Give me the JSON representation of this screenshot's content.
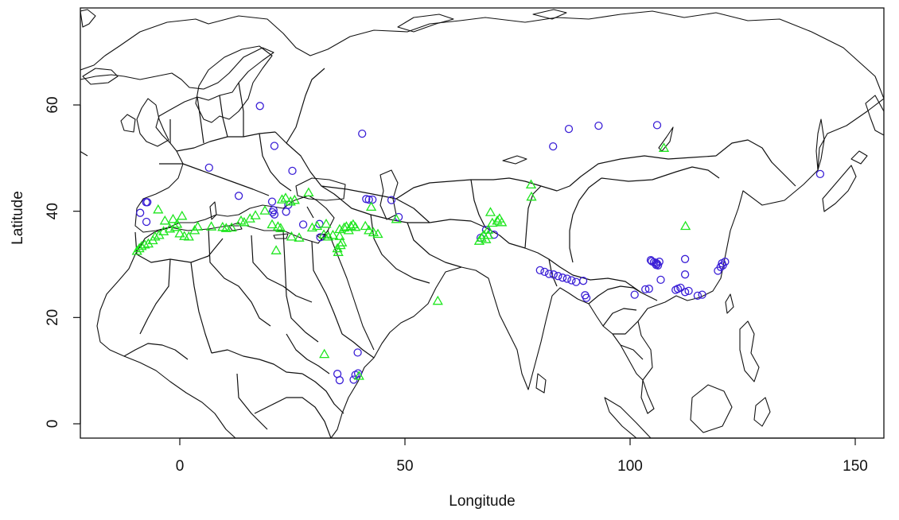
{
  "chart_data": {
    "type": "scatter",
    "title": "",
    "xlabel": "Longitude",
    "ylabel": "Latitude",
    "xlim": [
      -22,
      157
    ],
    "ylim": [
      -3,
      78
    ],
    "x_ticks": [
      0,
      50,
      100,
      150
    ],
    "y_ticks": [
      0,
      20,
      40,
      60
    ],
    "grid": false,
    "legend": "none",
    "basemap": "world political boundaries (Europe, Africa, Asia)",
    "colors": {
      "circles": "#3a1fd6",
      "triangles": "#1ee61e",
      "map_lines": "#111111"
    },
    "series": [
      {
        "marker": "circle",
        "points": [
          [
            17.8,
            59.8
          ],
          [
            21,
            52.3
          ],
          [
            40.5,
            54.6
          ],
          [
            6.5,
            48.2
          ],
          [
            25,
            47.6
          ],
          [
            13.1,
            42.9
          ],
          [
            -7.5,
            41.7
          ],
          [
            -7.2,
            41.7
          ],
          [
            -8.8,
            39.7
          ],
          [
            -7.4,
            38
          ],
          [
            20.5,
            41.8
          ],
          [
            20.8,
            40.2
          ],
          [
            20.6,
            39.8
          ],
          [
            21,
            39.4
          ],
          [
            23.6,
            39.9
          ],
          [
            24.1,
            41.2
          ],
          [
            27.4,
            37.5
          ],
          [
            31,
            37.6
          ],
          [
            31.2,
            35.1
          ],
          [
            41.4,
            42.3
          ],
          [
            42,
            42.2
          ],
          [
            42.8,
            42.2
          ],
          [
            47,
            42.1
          ],
          [
            48.6,
            38.9
          ],
          [
            66.8,
            35
          ],
          [
            68,
            36.5
          ],
          [
            69.8,
            35.6
          ],
          [
            35,
            9.4
          ],
          [
            35.5,
            8.2
          ],
          [
            38.6,
            8.3
          ],
          [
            39,
            9.2
          ],
          [
            39.6,
            9.5
          ],
          [
            39.5,
            13.4
          ],
          [
            82.9,
            52.2
          ],
          [
            86.4,
            55.5
          ],
          [
            93,
            56.1
          ],
          [
            106,
            56.2
          ],
          [
            142.2,
            47
          ],
          [
            80,
            28.9
          ],
          [
            81,
            28.6
          ],
          [
            82,
            28.2
          ],
          [
            83,
            28.1
          ],
          [
            84,
            27.8
          ],
          [
            85,
            27.5
          ],
          [
            86,
            27.3
          ],
          [
            87,
            27
          ],
          [
            88,
            26.7
          ],
          [
            89.6,
            26.9
          ],
          [
            90,
            24.2
          ],
          [
            90.3,
            23.7
          ],
          [
            104.8,
            30.6
          ],
          [
            105.3,
            30.4
          ],
          [
            105.7,
            30.3
          ],
          [
            106,
            30.1
          ],
          [
            106.2,
            29.8
          ],
          [
            106.5,
            30.5
          ],
          [
            105.8,
            29.9
          ],
          [
            104.6,
            30.8
          ],
          [
            106.8,
            27.1
          ],
          [
            112.2,
            31
          ],
          [
            112.2,
            28.1
          ],
          [
            104.2,
            25.4
          ],
          [
            103.4,
            25.3
          ],
          [
            101,
            24.3
          ],
          [
            110.1,
            25.2
          ],
          [
            110.6,
            25.4
          ],
          [
            111.2,
            25.6
          ],
          [
            112.2,
            24.8
          ],
          [
            113,
            25
          ],
          [
            115,
            24.1
          ],
          [
            116,
            24.3
          ],
          [
            119.5,
            28.8
          ],
          [
            120.1,
            29.5
          ],
          [
            120.4,
            30.2
          ],
          [
            121.1,
            30.5
          ],
          [
            120.6,
            29.8
          ]
        ]
      },
      {
        "marker": "triangle",
        "points": [
          [
            -9.5,
            32.5
          ],
          [
            -9,
            33
          ],
          [
            -8.5,
            33.4
          ],
          [
            -7.8,
            33.7
          ],
          [
            -7,
            33.9
          ],
          [
            -6,
            34.5
          ],
          [
            -5.5,
            35.2
          ],
          [
            -4.6,
            35.5
          ],
          [
            -3.6,
            36.2
          ],
          [
            -2.2,
            36.7
          ],
          [
            -1,
            37
          ],
          [
            0,
            35.8
          ],
          [
            1,
            35.3
          ],
          [
            2,
            35.2
          ],
          [
            3.3,
            36.4
          ],
          [
            4,
            37.1
          ],
          [
            -4.8,
            40.3
          ],
          [
            -3.3,
            38.2
          ],
          [
            -1.5,
            38.5
          ],
          [
            0.5,
            39.1
          ],
          [
            -0.6,
            37.6
          ],
          [
            7,
            37.1
          ],
          [
            9.5,
            37
          ],
          [
            10.3,
            36.8
          ],
          [
            11.5,
            36.9
          ],
          [
            13.6,
            38.2
          ],
          [
            14.3,
            37.9
          ],
          [
            15.6,
            38.6
          ],
          [
            16.8,
            39.2
          ],
          [
            18.9,
            40.1
          ],
          [
            21.4,
            32.6
          ],
          [
            20.5,
            37.5
          ],
          [
            21.8,
            37.1
          ],
          [
            22.4,
            36.8
          ],
          [
            22.7,
            42.2
          ],
          [
            23.5,
            42.5
          ],
          [
            24.6,
            41.8
          ],
          [
            25.5,
            42.1
          ],
          [
            28.6,
            43.5
          ],
          [
            24.8,
            35.2
          ],
          [
            26.5,
            35
          ],
          [
            29.4,
            36.9
          ],
          [
            30.5,
            37.2
          ],
          [
            32.5,
            37.6
          ],
          [
            32,
            35.6
          ],
          [
            33,
            35.2
          ],
          [
            34,
            35.5
          ],
          [
            35.5,
            35.3
          ],
          [
            36,
            34.1
          ],
          [
            35.7,
            33.6
          ],
          [
            35.2,
            32.3
          ],
          [
            35,
            33
          ],
          [
            35.5,
            36.6
          ],
          [
            36.5,
            36.9
          ],
          [
            37,
            37.1
          ],
          [
            37.5,
            36.4
          ],
          [
            38,
            37.2
          ],
          [
            38.5,
            37.5
          ],
          [
            39,
            37
          ],
          [
            41.2,
            37.2
          ],
          [
            42,
            36.4
          ],
          [
            43,
            36
          ],
          [
            44,
            35.7
          ],
          [
            42.5,
            40.8
          ],
          [
            48.1,
            38.5
          ],
          [
            57.3,
            23.1
          ],
          [
            32.1,
            13.1
          ],
          [
            39.8,
            9
          ],
          [
            66.5,
            34.4
          ],
          [
            67,
            35
          ],
          [
            67.5,
            35.5
          ],
          [
            68,
            34.7
          ],
          [
            68.5,
            35.5
          ],
          [
            68.5,
            36.5
          ],
          [
            69,
            39.8
          ],
          [
            69.4,
            37.8
          ],
          [
            70.5,
            38.2
          ],
          [
            71,
            38.6
          ],
          [
            71.5,
            37.9
          ],
          [
            78,
            45
          ],
          [
            78.1,
            42.7
          ],
          [
            107.5,
            51.9
          ],
          [
            112.3,
            37.2
          ]
        ]
      }
    ]
  }
}
